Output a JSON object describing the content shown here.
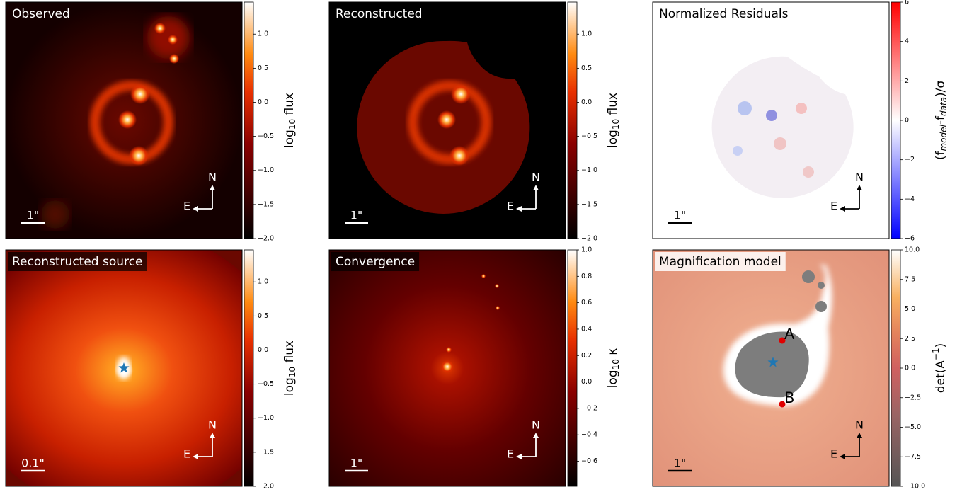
{
  "chart_data": [
    {
      "type": "image",
      "title": "Observed",
      "cmap": "gist_heat",
      "colorbar_label_parts": [
        "log",
        "10",
        " flux"
      ],
      "ylim": [
        -2.0,
        1.47
      ],
      "yticks": [
        {
          "value": 1.0,
          "label": "1.0"
        },
        {
          "value": 0.5,
          "label": "0.5"
        },
        {
          "value": 0.0,
          "label": "0.0"
        },
        {
          "value": -0.5,
          "label": "−0.5"
        },
        {
          "value": -1.0,
          "label": "−1.0"
        },
        {
          "value": -1.5,
          "label": "−1.5"
        },
        {
          "value": -2.0,
          "label": "−2.0"
        }
      ],
      "scale_bar": "1\"",
      "compass": [
        "N",
        "E"
      ]
    },
    {
      "type": "image",
      "title": "Reconstructed",
      "cmap": "gist_heat",
      "colorbar_label_parts": [
        "log",
        "10",
        " flux"
      ],
      "ylim": [
        -2.0,
        1.47
      ],
      "yticks": [
        {
          "value": 1.0,
          "label": "1.0"
        },
        {
          "value": 0.5,
          "label": "0.5"
        },
        {
          "value": 0.0,
          "label": "0.0"
        },
        {
          "value": -0.5,
          "label": "−0.5"
        },
        {
          "value": -1.0,
          "label": "−1.0"
        },
        {
          "value": -1.5,
          "label": "−1.5"
        },
        {
          "value": -2.0,
          "label": "−2.0"
        }
      ],
      "scale_bar": "1\"",
      "compass": [
        "N",
        "E"
      ]
    },
    {
      "type": "image",
      "title": "Normalized Residuals",
      "cmap": "bwr",
      "colorbar_label_parts": [
        "(f",
        "model",
        "-f",
        "data",
        ")/σ"
      ],
      "ylim": [
        -6,
        6
      ],
      "yticks": [
        {
          "value": 6,
          "label": "6"
        },
        {
          "value": 4,
          "label": "4"
        },
        {
          "value": 2,
          "label": "2"
        },
        {
          "value": 0,
          "label": "0"
        },
        {
          "value": -2,
          "label": "−2"
        },
        {
          "value": -4,
          "label": "−4"
        },
        {
          "value": -6,
          "label": "−6"
        }
      ],
      "scale_bar": "1\"",
      "compass": [
        "N",
        "E"
      ]
    },
    {
      "type": "image",
      "title": "Reconstructed source",
      "cmap": "gist_heat",
      "colorbar_label_parts": [
        "log",
        "10",
        " flux"
      ],
      "ylim": [
        -2.0,
        1.47
      ],
      "yticks": [
        {
          "value": 1.0,
          "label": "1.0"
        },
        {
          "value": 0.5,
          "label": "0.5"
        },
        {
          "value": 0.0,
          "label": "0.0"
        },
        {
          "value": -0.5,
          "label": "−0.5"
        },
        {
          "value": -1.0,
          "label": "−1.0"
        },
        {
          "value": -1.5,
          "label": "−1.5"
        },
        {
          "value": -2.0,
          "label": "−2.0"
        }
      ],
      "scale_bar": "0.1\"",
      "compass": [
        "N",
        "E"
      ]
    },
    {
      "type": "image",
      "title": "Convergence",
      "cmap": "gist_heat",
      "colorbar_label_parts": [
        "log",
        "10",
        " κ"
      ],
      "ylim": [
        -0.79,
        1.0
      ],
      "yticks": [
        {
          "value": 1.0,
          "label": "1.0"
        },
        {
          "value": 0.8,
          "label": "0.8"
        },
        {
          "value": 0.6,
          "label": "0.6"
        },
        {
          "value": 0.4,
          "label": "0.4"
        },
        {
          "value": 0.2,
          "label": "0.2"
        },
        {
          "value": 0.0,
          "label": "0.0"
        },
        {
          "value": -0.2,
          "label": "−0.2"
        },
        {
          "value": -0.4,
          "label": "−0.4"
        },
        {
          "value": -0.6,
          "label": "−0.6"
        }
      ],
      "scale_bar": "1\"",
      "compass": [
        "N",
        "E"
      ]
    },
    {
      "type": "image",
      "title": "Magnification model",
      "cmap": "magnification",
      "colorbar_label_parts": [
        "det(A",
        "−1",
        ")"
      ],
      "ylim": [
        -10.0,
        10.0
      ],
      "yticks": [
        {
          "value": 10.0,
          "label": "10.0"
        },
        {
          "value": 7.5,
          "label": "7.5"
        },
        {
          "value": 5.0,
          "label": "5.0"
        },
        {
          "value": 2.5,
          "label": "2.5"
        },
        {
          "value": 0.0,
          "label": "0.0"
        },
        {
          "value": -2.5,
          "label": "−2.5"
        },
        {
          "value": -5.0,
          "label": "−5.0"
        },
        {
          "value": -7.5,
          "label": "−7.5"
        },
        {
          "value": -10.0,
          "label": "−10.0"
        }
      ],
      "scale_bar": "1\"",
      "compass": [
        "N",
        "E"
      ],
      "annotations": [
        "A",
        "B"
      ]
    }
  ]
}
